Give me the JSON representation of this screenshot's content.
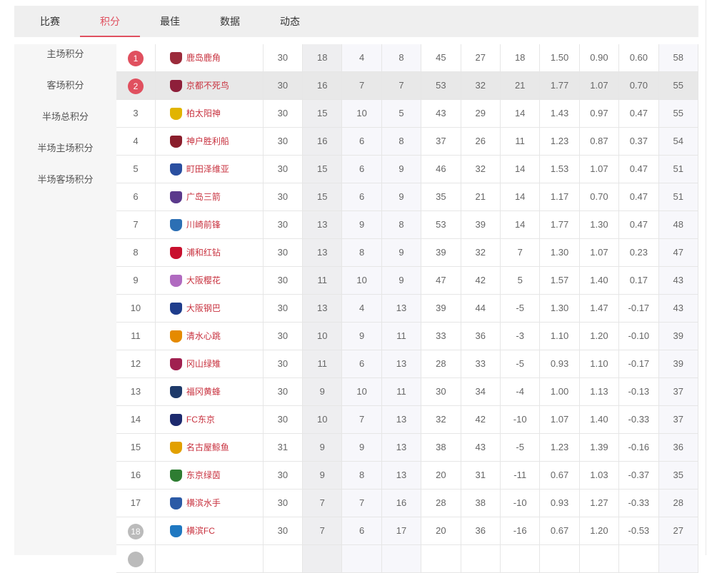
{
  "tabs": [
    "比赛",
    "积分",
    "最佳",
    "数据",
    "动态"
  ],
  "active_tab": 1,
  "sidebar": [
    "主场积分",
    "客场积分",
    "半场总积分",
    "半场主场积分",
    "半场客场积分"
  ],
  "colors": {
    "accent": "#e0505f",
    "relegation": "#bbbbbb",
    "team_text": "#c8323f"
  },
  "rows": [
    {
      "rank": "1",
      "team": "鹿岛鹿角",
      "logo": "#9b2b3b",
      "p": "30",
      "w": "18",
      "d": "4",
      "l": "8",
      "gf": "45",
      "ga": "27",
      "gd": "18",
      "avg_f": "1.50",
      "avg_a": "0.90",
      "avg_d": "0.60",
      "pts": "58",
      "badge": "accent"
    },
    {
      "rank": "2",
      "team": "京都不死鸟",
      "logo": "#8e1f3a",
      "p": "30",
      "w": "16",
      "d": "7",
      "l": "7",
      "gf": "53",
      "ga": "32",
      "gd": "21",
      "avg_f": "1.77",
      "avg_a": "1.07",
      "avg_d": "0.70",
      "pts": "55",
      "badge": "accent",
      "highlighted": true
    },
    {
      "rank": "3",
      "team": "柏太阳神",
      "logo": "#e1b400",
      "p": "30",
      "w": "15",
      "d": "10",
      "l": "5",
      "gf": "43",
      "ga": "29",
      "gd": "14",
      "avg_f": "1.43",
      "avg_a": "0.97",
      "avg_d": "0.47",
      "pts": "55"
    },
    {
      "rank": "4",
      "team": "神户胜利船",
      "logo": "#8a1e2c",
      "p": "30",
      "w": "16",
      "d": "6",
      "l": "8",
      "gf": "37",
      "ga": "26",
      "gd": "11",
      "avg_f": "1.23",
      "avg_a": "0.87",
      "avg_d": "0.37",
      "pts": "54"
    },
    {
      "rank": "5",
      "team": "町田泽维亚",
      "logo": "#2a4fa0",
      "p": "30",
      "w": "15",
      "d": "6",
      "l": "9",
      "gf": "46",
      "ga": "32",
      "gd": "14",
      "avg_f": "1.53",
      "avg_a": "1.07",
      "avg_d": "0.47",
      "pts": "51"
    },
    {
      "rank": "6",
      "team": "广岛三箭",
      "logo": "#5b3a8c",
      "p": "30",
      "w": "15",
      "d": "6",
      "l": "9",
      "gf": "35",
      "ga": "21",
      "gd": "14",
      "avg_f": "1.17",
      "avg_a": "0.70",
      "avg_d": "0.47",
      "pts": "51"
    },
    {
      "rank": "7",
      "team": "川崎前锋",
      "logo": "#2c6fb4",
      "p": "30",
      "w": "13",
      "d": "9",
      "l": "8",
      "gf": "53",
      "ga": "39",
      "gd": "14",
      "avg_f": "1.77",
      "avg_a": "1.30",
      "avg_d": "0.47",
      "pts": "48"
    },
    {
      "rank": "8",
      "team": "浦和红钻",
      "logo": "#c8102e",
      "p": "30",
      "w": "13",
      "d": "8",
      "l": "9",
      "gf": "39",
      "ga": "32",
      "gd": "7",
      "avg_f": "1.30",
      "avg_a": "1.07",
      "avg_d": "0.23",
      "pts": "47"
    },
    {
      "rank": "9",
      "team": "大阪樱花",
      "logo": "#b06ac0",
      "p": "30",
      "w": "11",
      "d": "10",
      "l": "9",
      "gf": "47",
      "ga": "42",
      "gd": "5",
      "avg_f": "1.57",
      "avg_a": "1.40",
      "avg_d": "0.17",
      "pts": "43"
    },
    {
      "rank": "10",
      "team": "大阪钢巴",
      "logo": "#1f3d8c",
      "p": "30",
      "w": "13",
      "d": "4",
      "l": "13",
      "gf": "39",
      "ga": "44",
      "gd": "-5",
      "avg_f": "1.30",
      "avg_a": "1.47",
      "avg_d": "-0.17",
      "pts": "43"
    },
    {
      "rank": "11",
      "team": "清水心跳",
      "logo": "#e58a00",
      "p": "30",
      "w": "10",
      "d": "9",
      "l": "11",
      "gf": "33",
      "ga": "36",
      "gd": "-3",
      "avg_f": "1.10",
      "avg_a": "1.20",
      "avg_d": "-0.10",
      "pts": "39"
    },
    {
      "rank": "12",
      "team": "冈山绿雉",
      "logo": "#a02050",
      "p": "30",
      "w": "11",
      "d": "6",
      "l": "13",
      "gf": "28",
      "ga": "33",
      "gd": "-5",
      "avg_f": "0.93",
      "avg_a": "1.10",
      "avg_d": "-0.17",
      "pts": "39"
    },
    {
      "rank": "13",
      "team": "福冈黄蜂",
      "logo": "#1e3a6a",
      "p": "30",
      "w": "9",
      "d": "10",
      "l": "11",
      "gf": "30",
      "ga": "34",
      "gd": "-4",
      "avg_f": "1.00",
      "avg_a": "1.13",
      "avg_d": "-0.13",
      "pts": "37"
    },
    {
      "rank": "14",
      "team": "FC东京",
      "logo": "#1d2a6e",
      "p": "30",
      "w": "10",
      "d": "7",
      "l": "13",
      "gf": "32",
      "ga": "42",
      "gd": "-10",
      "avg_f": "1.07",
      "avg_a": "1.40",
      "avg_d": "-0.33",
      "pts": "37"
    },
    {
      "rank": "15",
      "team": "名古屋鲸鱼",
      "logo": "#e2a000",
      "p": "31",
      "w": "9",
      "d": "9",
      "l": "13",
      "gf": "38",
      "ga": "43",
      "gd": "-5",
      "avg_f": "1.23",
      "avg_a": "1.39",
      "avg_d": "-0.16",
      "pts": "36"
    },
    {
      "rank": "16",
      "team": "东京绿茵",
      "logo": "#2e7d32",
      "p": "30",
      "w": "9",
      "d": "8",
      "l": "13",
      "gf": "20",
      "ga": "31",
      "gd": "-11",
      "avg_f": "0.67",
      "avg_a": "1.03",
      "avg_d": "-0.37",
      "pts": "35"
    },
    {
      "rank": "17",
      "team": "横滨水手",
      "logo": "#2b5aa6",
      "p": "30",
      "w": "7",
      "d": "7",
      "l": "16",
      "gf": "28",
      "ga": "38",
      "gd": "-10",
      "avg_f": "0.93",
      "avg_a": "1.27",
      "avg_d": "-0.33",
      "pts": "28"
    },
    {
      "rank": "18",
      "team": "横滨FC",
      "logo": "#1f78c1",
      "p": "30",
      "w": "7",
      "d": "6",
      "l": "17",
      "gf": "20",
      "ga": "36",
      "gd": "-16",
      "avg_f": "0.67",
      "avg_a": "1.20",
      "avg_d": "-0.53",
      "pts": "27",
      "badge": "relegation"
    }
  ]
}
